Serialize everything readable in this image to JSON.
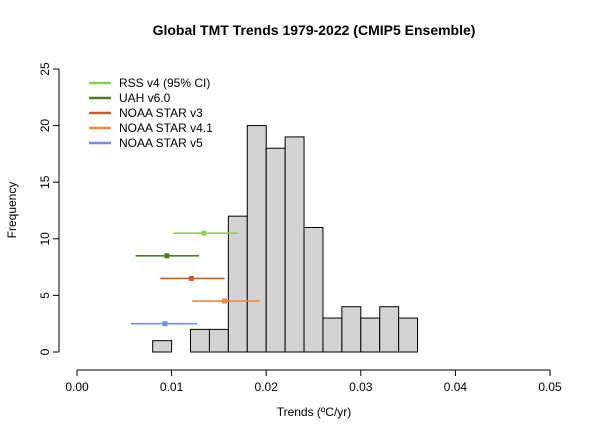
{
  "chart_data": {
    "type": "bar",
    "title": "Global TMT Trends 1979-2022 (CMIP5 Ensemble)",
    "xlabel": "Trends (ºC/yr)",
    "ylabel": "Frequency",
    "xlim": [
      0.0,
      0.05
    ],
    "ylim": [
      0,
      25
    ],
    "x_ticks": [
      "0.00",
      "0.01",
      "0.02",
      "0.03",
      "0.04",
      "0.05"
    ],
    "y_ticks": [
      "0",
      "5",
      "10",
      "15",
      "20",
      "25"
    ],
    "bins": [
      {
        "start": 0.008,
        "end": 0.01,
        "count": 1
      },
      {
        "start": 0.01,
        "end": 0.012,
        "count": 0
      },
      {
        "start": 0.012,
        "end": 0.014,
        "count": 2
      },
      {
        "start": 0.014,
        "end": 0.016,
        "count": 2
      },
      {
        "start": 0.016,
        "end": 0.018,
        "count": 12
      },
      {
        "start": 0.018,
        "end": 0.02,
        "count": 20
      },
      {
        "start": 0.02,
        "end": 0.022,
        "count": 18
      },
      {
        "start": 0.022,
        "end": 0.024,
        "count": 19
      },
      {
        "start": 0.024,
        "end": 0.026,
        "count": 11
      },
      {
        "start": 0.026,
        "end": 0.028,
        "count": 3
      },
      {
        "start": 0.028,
        "end": 0.03,
        "count": 4
      },
      {
        "start": 0.03,
        "end": 0.032,
        "count": 3
      },
      {
        "start": 0.032,
        "end": 0.034,
        "count": 4
      },
      {
        "start": 0.034,
        "end": 0.036,
        "count": 3
      }
    ],
    "bar_color": "#d3d3d3",
    "grid": false,
    "legend_position": "top-left",
    "observations": [
      {
        "name": "RSS v4 (95% CI)",
        "color": "#8fd14f",
        "center": 0.0134,
        "low": 0.0102,
        "high": 0.017,
        "y": 10.5
      },
      {
        "name": "UAH v6.0",
        "color": "#4b7b24",
        "center": 0.0095,
        "low": 0.0062,
        "high": 0.0129,
        "y": 8.5
      },
      {
        "name": "NOAA STAR v3",
        "color": "#c0602e",
        "center": 0.0121,
        "low": 0.0088,
        "high": 0.0156,
        "y": 6.5
      },
      {
        "name": "NOAA STAR v4.1",
        "color": "#f08a3c",
        "center": 0.0156,
        "low": 0.0122,
        "high": 0.0193,
        "y": 4.5
      },
      {
        "name": "NOAA STAR v5",
        "color": "#6f8fe3",
        "center": 0.0093,
        "low": 0.0057,
        "high": 0.0127,
        "y": 2.5
      }
    ]
  }
}
